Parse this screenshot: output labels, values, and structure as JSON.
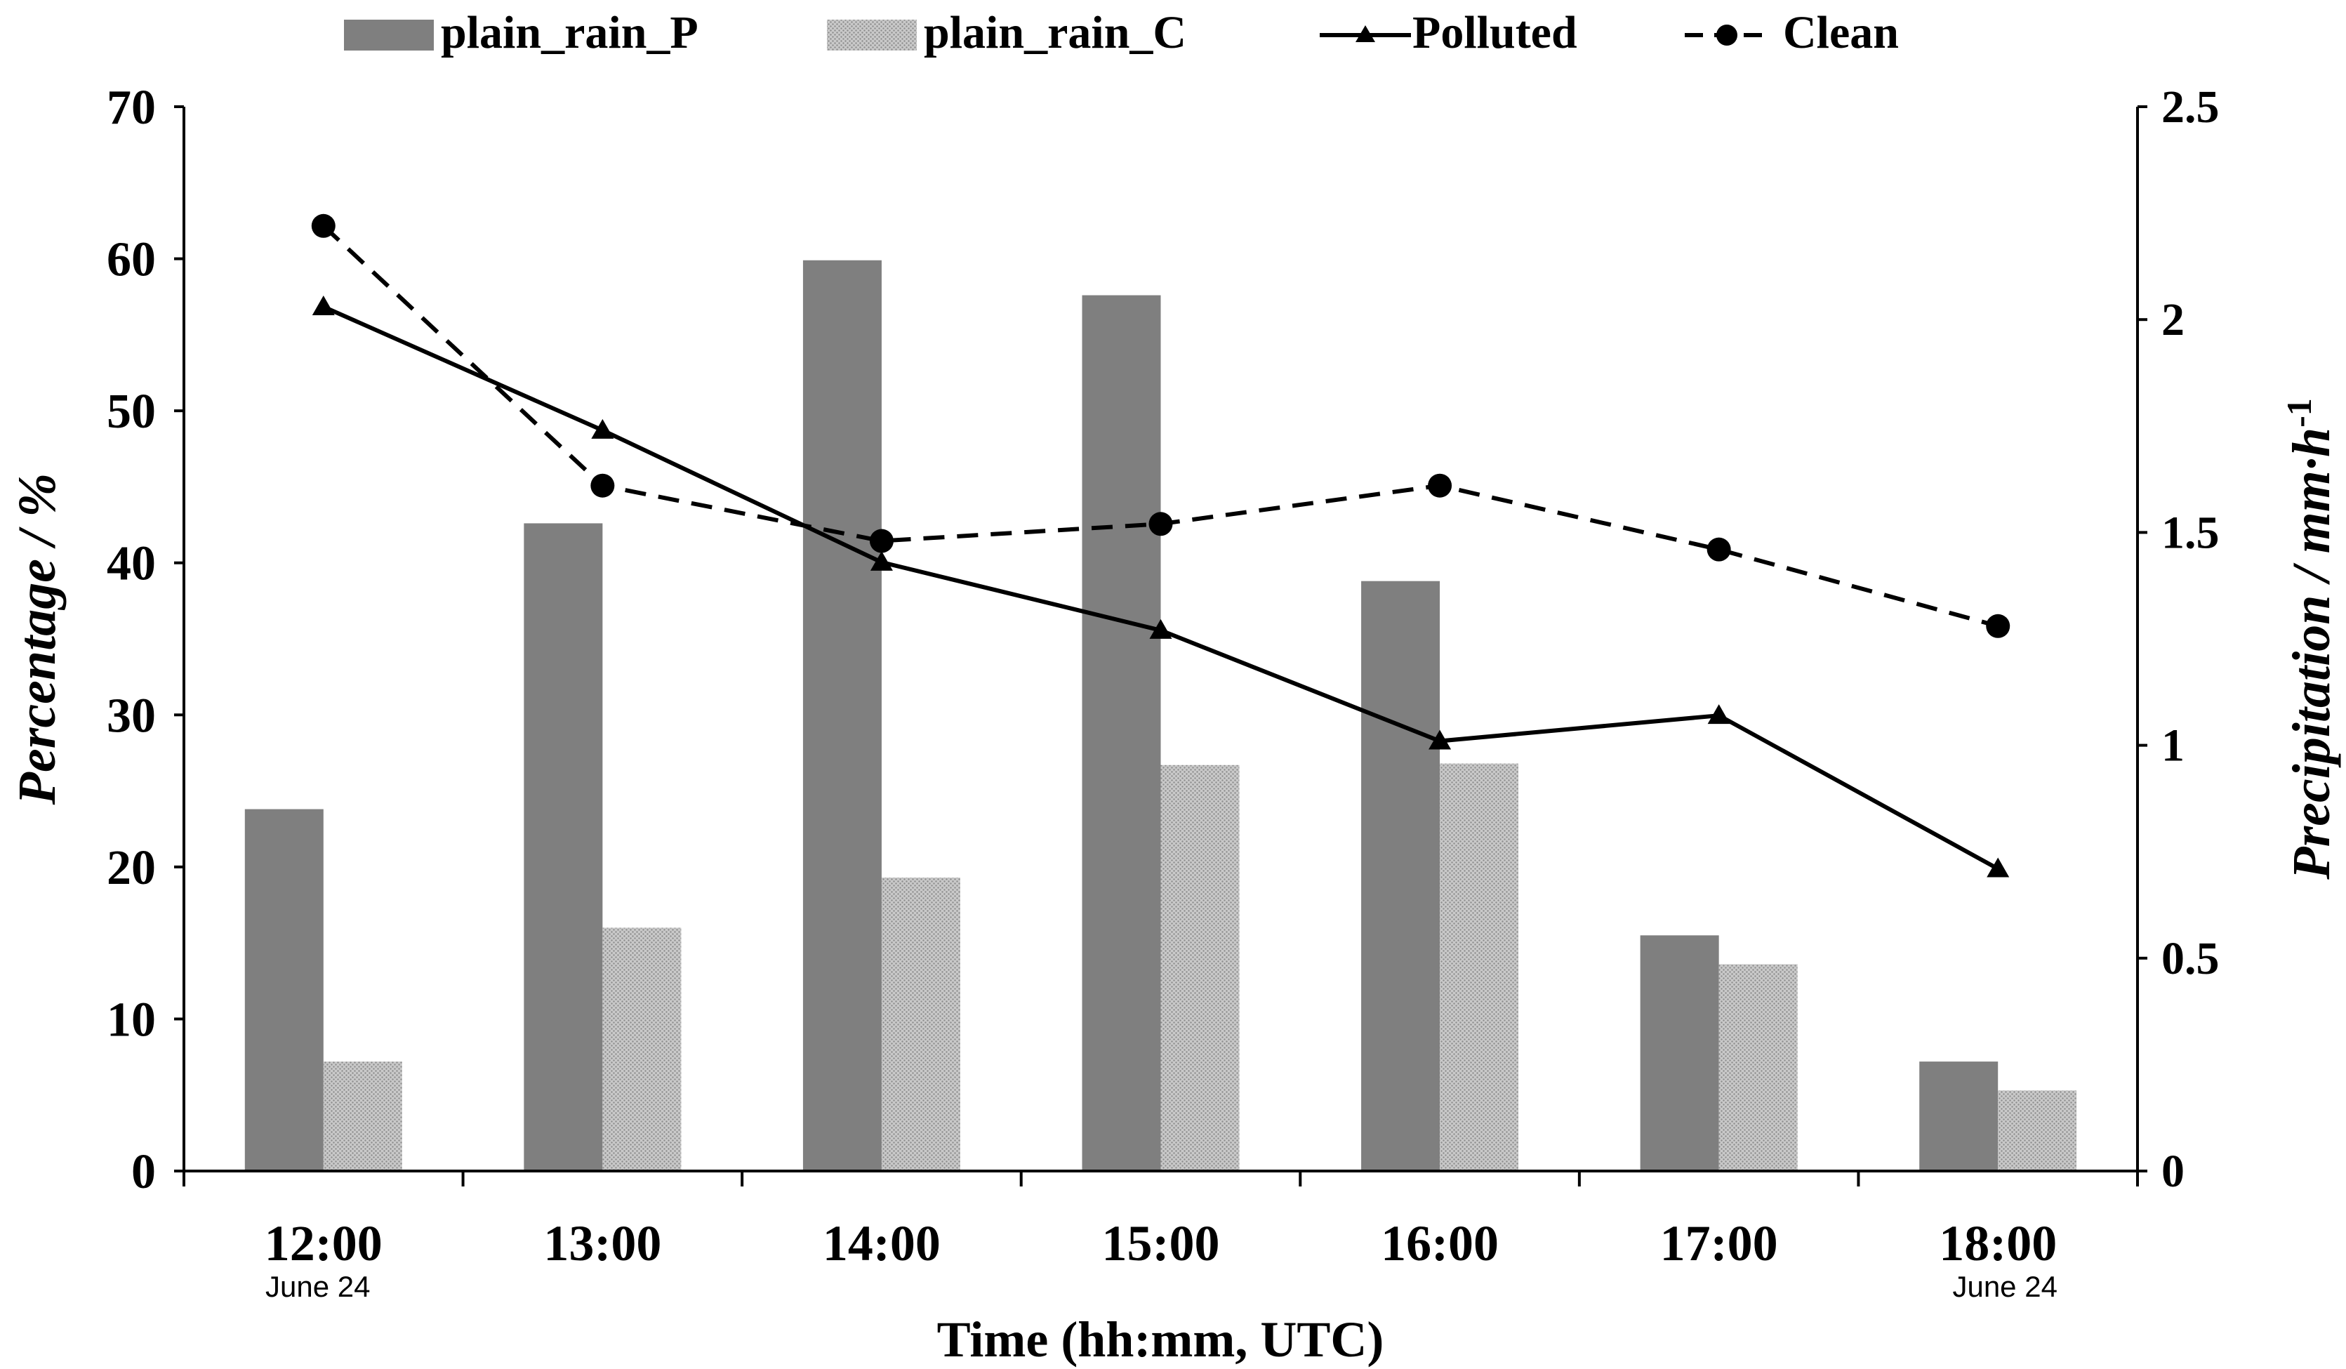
{
  "chart_data": {
    "type": "bar+line",
    "title": "",
    "xlabel": "Time (hh:mm, UTC)",
    "ylabel_left": "Percentage / %",
    "ylabel_right_main": "Precipitation / mm·h",
    "ylabel_right_sup": "-1",
    "categories": [
      "12:00",
      "13:00",
      "14:00",
      "15:00",
      "16:00",
      "17:00",
      "18:00"
    ],
    "category_sublabels": [
      "June 24",
      "",
      "",
      "",
      "",
      "",
      "June 24"
    ],
    "ylim_left": [
      0,
      70
    ],
    "yticks_left": [
      "0",
      "10",
      "20",
      "30",
      "40",
      "50",
      "60",
      "70"
    ],
    "ylim_right": [
      0,
      2.5
    ],
    "yticks_right": [
      "0",
      "0.5",
      "1",
      "1.5",
      "2",
      "2.5"
    ],
    "bar_series": [
      {
        "name": "plain_rain_P",
        "axis": "left",
        "color": "#7f7f7f",
        "pattern": "solid",
        "values": [
          23.8,
          42.6,
          59.9,
          57.6,
          38.8,
          15.5,
          7.2
        ]
      },
      {
        "name": "plain_rain_C",
        "axis": "left",
        "color": "#bfbfbf",
        "pattern": "dotted",
        "values": [
          7.2,
          16.0,
          19.3,
          26.7,
          26.8,
          13.6,
          5.3
        ]
      }
    ],
    "line_series": [
      {
        "name": "Polluted",
        "axis": "right",
        "style": "solid",
        "marker": "triangle",
        "values": [
          2.03,
          1.74,
          1.43,
          1.27,
          1.01,
          1.07,
          0.71
        ]
      },
      {
        "name": "Clean",
        "axis": "right",
        "style": "dashed",
        "marker": "circle",
        "values": [
          2.22,
          1.61,
          1.48,
          1.52,
          1.61,
          1.46,
          1.28
        ]
      }
    ],
    "legend_order": [
      "plain_rain_P",
      "plain_rain_C",
      "Polluted",
      "Clean"
    ],
    "legend_position": "top-center",
    "grid": false
  }
}
